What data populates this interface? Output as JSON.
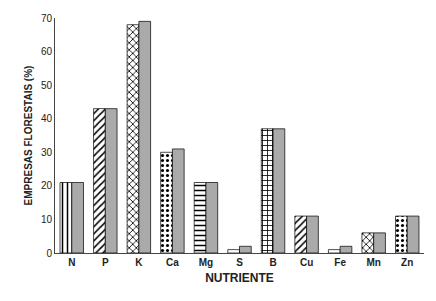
{
  "chart_data": {
    "type": "bar",
    "categories": [
      "N",
      "P",
      "K",
      "Ca",
      "Mg",
      "S",
      "B",
      "Cu",
      "Fe",
      "Mn",
      "Zn"
    ],
    "series": [
      {
        "color": "#ffffff",
        "values": [
          21,
          43,
          68,
          30,
          21,
          1,
          37,
          11,
          1,
          6,
          11
        ]
      },
      {
        "color": "#aaaaaa",
        "values": [
          21,
          43,
          69,
          31,
          21,
          2,
          37,
          11,
          2,
          6,
          11
        ]
      }
    ],
    "xlabel": "NUTRIENTE",
    "ylabel": "EMPRESAS FLORESTAIS (%)",
    "ylim": [
      0,
      70
    ],
    "yticks": [
      0,
      10,
      20,
      30,
      40,
      50,
      60,
      70
    ],
    "grid": false
  }
}
